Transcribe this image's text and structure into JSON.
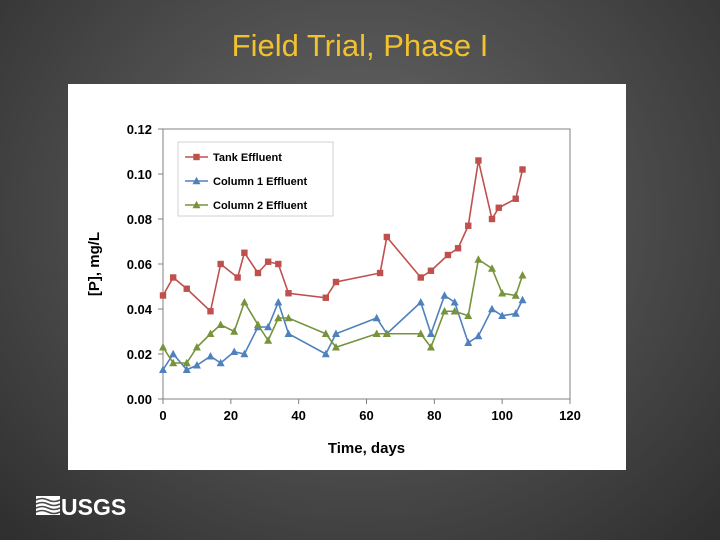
{
  "slide": {
    "title": "Field Trial, Phase I",
    "logo_text": "USGS"
  },
  "chart_data": {
    "type": "line",
    "title": "",
    "xlabel": "Time, days",
    "ylabel": "[P], mg/L",
    "xlim": [
      0,
      120
    ],
    "ylim": [
      0,
      0.12
    ],
    "x_ticks": [
      0,
      20,
      40,
      60,
      80,
      100,
      120
    ],
    "x_tick_labels": [
      "0",
      "20",
      "40",
      "60",
      "80",
      "100",
      "120"
    ],
    "y_ticks": [
      0,
      0.02,
      0.04,
      0.06,
      0.08,
      0.1,
      0.12
    ],
    "y_tick_labels": [
      "0.00",
      "0.02",
      "0.04",
      "0.06",
      "0.08",
      "0.10",
      "0.12"
    ],
    "grid": false,
    "legend_position": "top-left",
    "series": [
      {
        "name": "Tank Effluent",
        "color": "#c0504d",
        "marker": "square",
        "points": [
          [
            0,
            0.046
          ],
          [
            3,
            0.054
          ],
          [
            7,
            0.049
          ],
          [
            14,
            0.039
          ],
          [
            17,
            0.06
          ],
          [
            22,
            0.054
          ],
          [
            24,
            0.065
          ],
          [
            28,
            0.056
          ],
          [
            31,
            0.061
          ],
          [
            34,
            0.06
          ],
          [
            37,
            0.047
          ],
          [
            48,
            0.045
          ],
          [
            51,
            0.052
          ],
          [
            64,
            0.056
          ],
          [
            66,
            0.072
          ],
          [
            76,
            0.054
          ],
          [
            79,
            0.057
          ],
          [
            84,
            0.064
          ],
          [
            87,
            0.067
          ],
          [
            90,
            0.077
          ],
          [
            93,
            0.106
          ],
          [
            97,
            0.08
          ],
          [
            99,
            0.085
          ],
          [
            104,
            0.089
          ],
          [
            106,
            0.102
          ]
        ]
      },
      {
        "name": "Column 1 Effluent",
        "color": "#4f81bd",
        "marker": "triangle",
        "points": [
          [
            0,
            0.013
          ],
          [
            3,
            0.02
          ],
          [
            7,
            0.013
          ],
          [
            10,
            0.015
          ],
          [
            14,
            0.019
          ],
          [
            17,
            0.016
          ],
          [
            21,
            0.021
          ],
          [
            24,
            0.02
          ],
          [
            28,
            0.032
          ],
          [
            31,
            0.032
          ],
          [
            34,
            0.043
          ],
          [
            37,
            0.029
          ],
          [
            48,
            0.02
          ],
          [
            51,
            0.029
          ],
          [
            63,
            0.036
          ],
          [
            66,
            0.029
          ],
          [
            76,
            0.043
          ],
          [
            79,
            0.029
          ],
          [
            83,
            0.046
          ],
          [
            86,
            0.043
          ],
          [
            90,
            0.025
          ],
          [
            93,
            0.028
          ],
          [
            97,
            0.04
          ],
          [
            100,
            0.037
          ],
          [
            104,
            0.038
          ],
          [
            106,
            0.044
          ]
        ]
      },
      {
        "name": "Column 2 Effluent",
        "color": "#77933c",
        "marker": "triangle",
        "points": [
          [
            0,
            0.023
          ],
          [
            3,
            0.016
          ],
          [
            7,
            0.016
          ],
          [
            10,
            0.023
          ],
          [
            14,
            0.029
          ],
          [
            17,
            0.033
          ],
          [
            21,
            0.03
          ],
          [
            24,
            0.043
          ],
          [
            28,
            0.033
          ],
          [
            31,
            0.026
          ],
          [
            34,
            0.036
          ],
          [
            37,
            0.036
          ],
          [
            48,
            0.029
          ],
          [
            51,
            0.023
          ],
          [
            63,
            0.029
          ],
          [
            66,
            0.029
          ],
          [
            76,
            0.029
          ],
          [
            79,
            0.023
          ],
          [
            83,
            0.039
          ],
          [
            86,
            0.039
          ],
          [
            90,
            0.037
          ],
          [
            93,
            0.062
          ],
          [
            97,
            0.058
          ],
          [
            100,
            0.047
          ],
          [
            104,
            0.046
          ],
          [
            106,
            0.055
          ]
        ]
      }
    ]
  }
}
